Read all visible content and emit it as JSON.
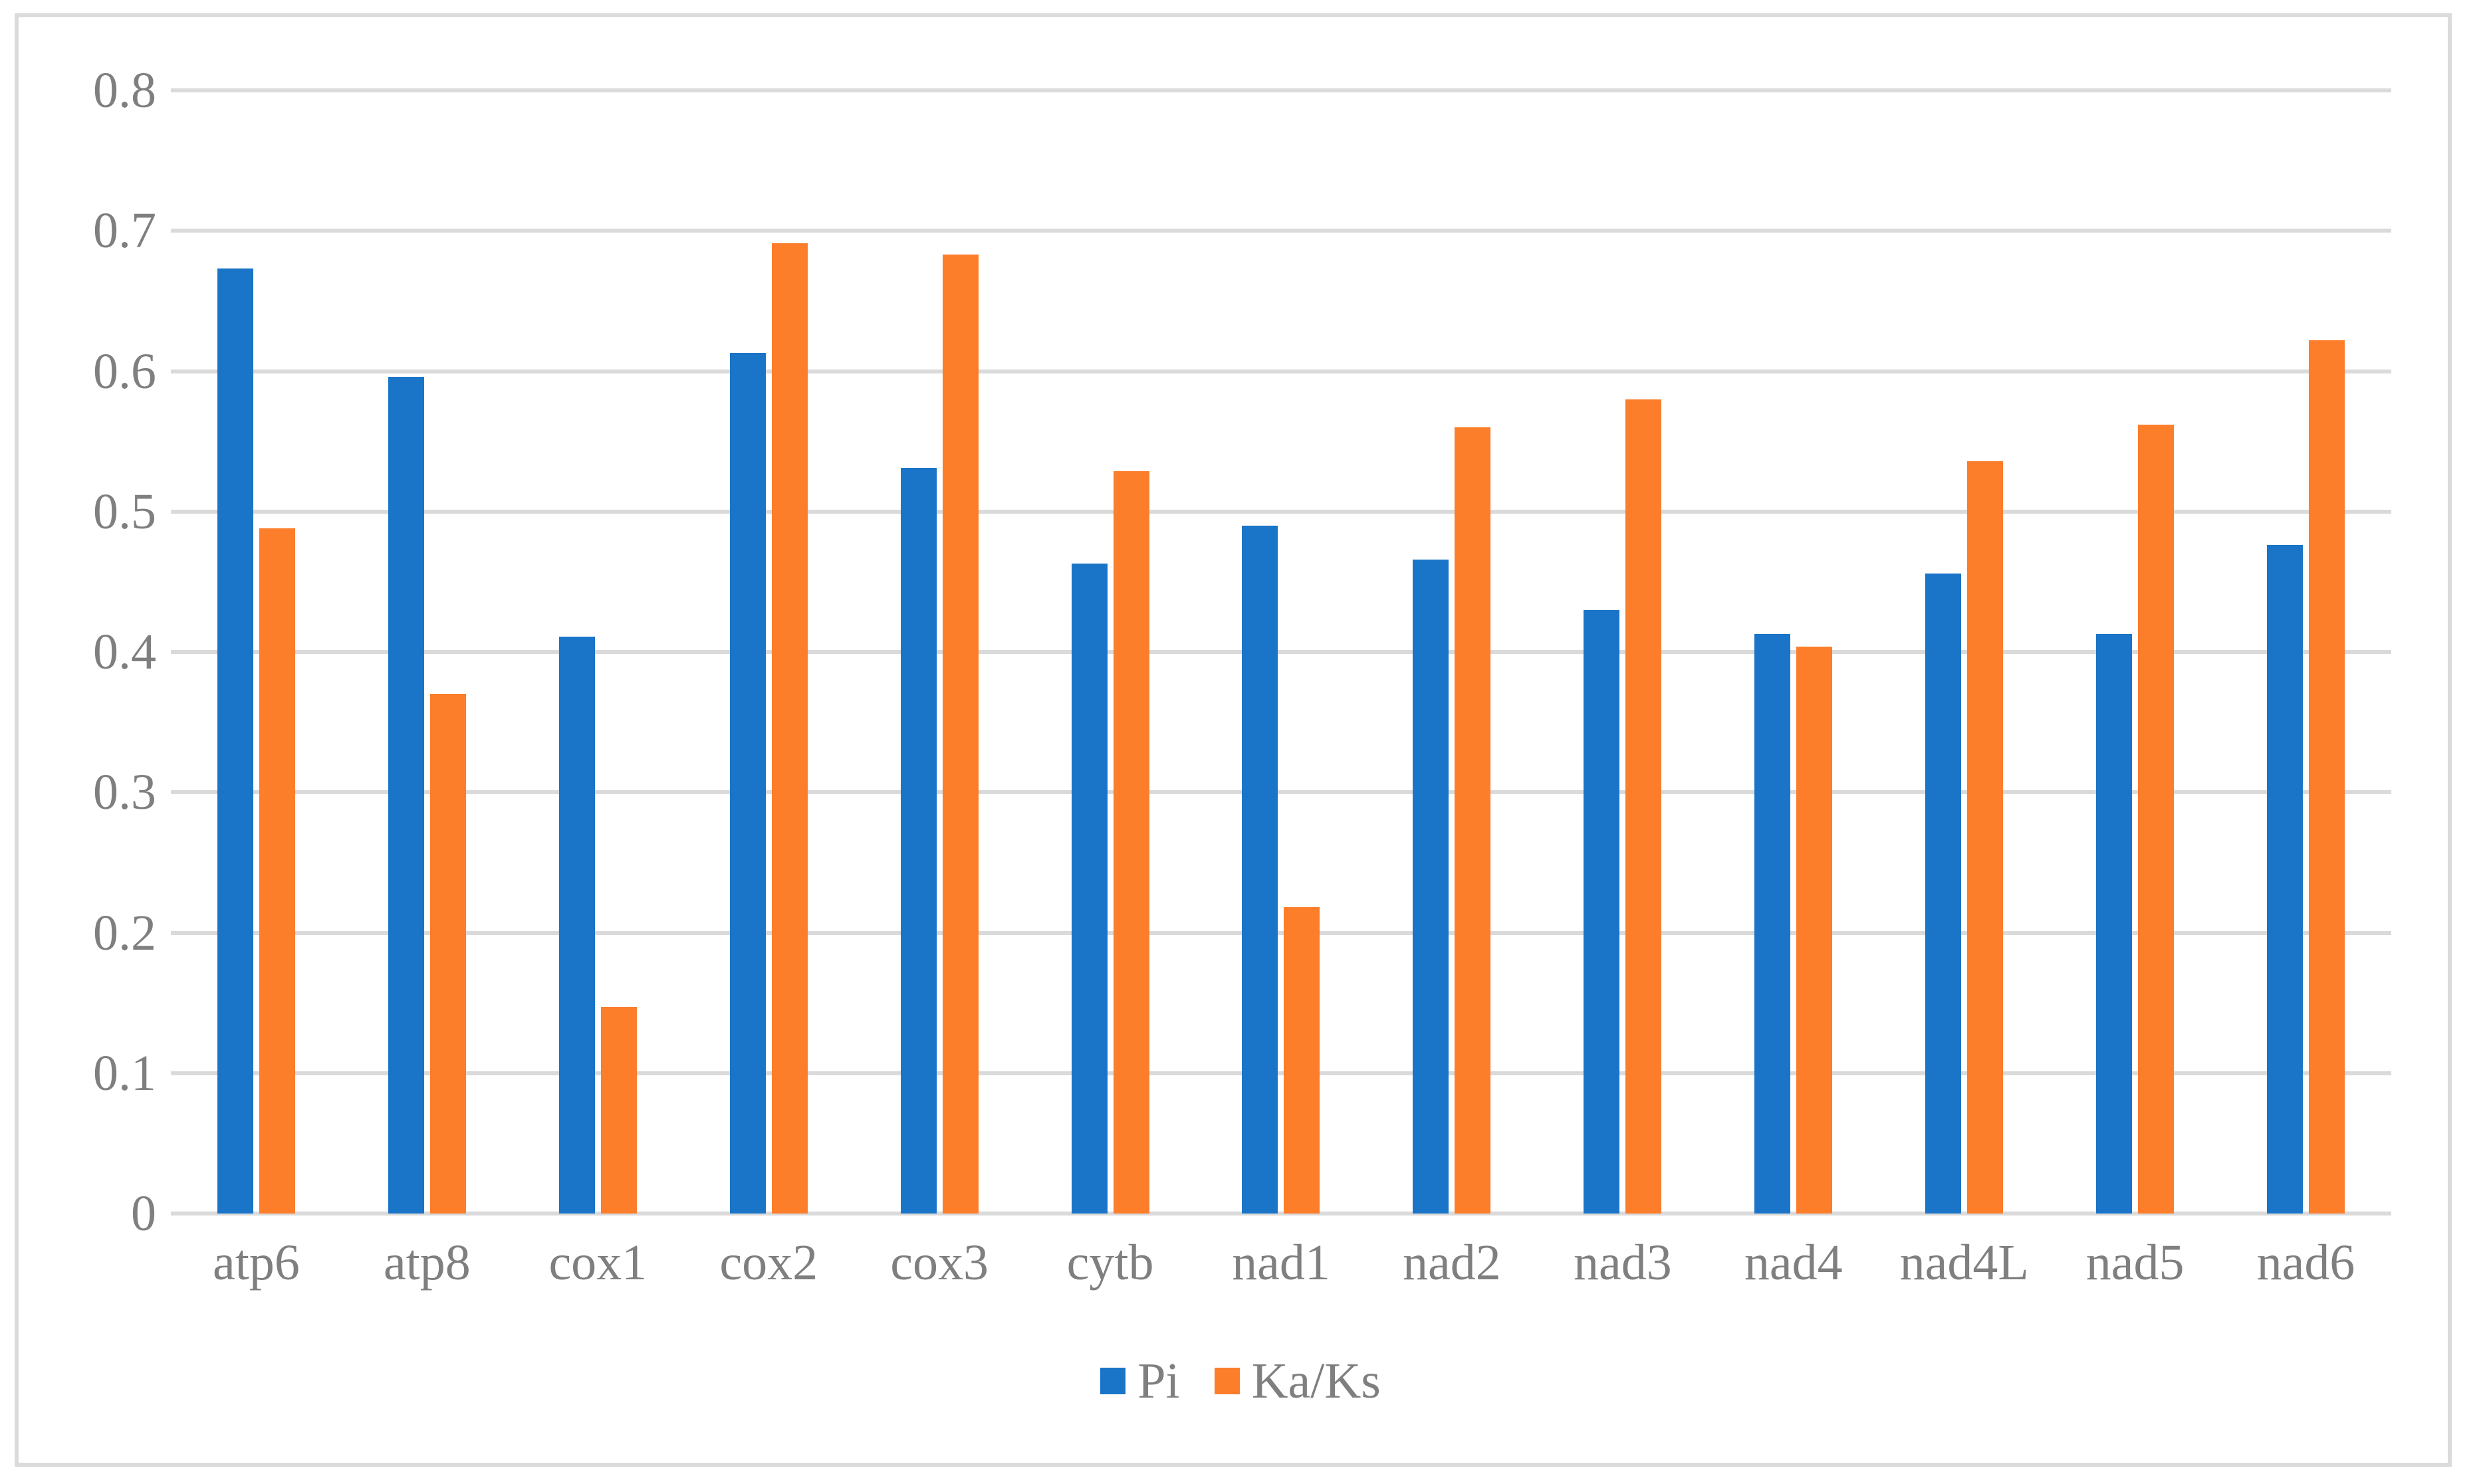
{
  "figure": {
    "background_color": "#FFFFFF",
    "border_color": "#DBDBDB",
    "gridline_color": "#DADADA",
    "text_color": "#7F7F7F"
  },
  "chart_data": {
    "type": "bar",
    "title": "",
    "xlabel": "",
    "ylabel": "",
    "categories": [
      "atp6",
      "atp8",
      "cox1",
      "cox2",
      "cox3",
      "cytb",
      "nad1",
      "nad2",
      "nad3",
      "nad4",
      "nad4L",
      "nad5",
      "nad6"
    ],
    "series": [
      {
        "name": "Pi",
        "color": "#1A74C8",
        "values": [
          0.673,
          0.596,
          0.411,
          0.613,
          0.531,
          0.463,
          0.49,
          0.466,
          0.43,
          0.413,
          0.456,
          0.413,
          0.476
        ]
      },
      {
        "name": "Ka/Ks",
        "color": "#FC7D2A",
        "values": [
          0.488,
          0.37,
          0.147,
          0.691,
          0.683,
          0.529,
          0.218,
          0.56,
          0.58,
          0.404,
          0.536,
          0.562,
          0.622
        ]
      }
    ],
    "ylim": [
      0,
      0.8
    ],
    "yticks": [
      "0",
      "0.1",
      "0.2",
      "0.3",
      "0.4",
      "0.5",
      "0.6",
      "0.7",
      "0.8"
    ],
    "grid": true,
    "legend_position": "bottom"
  },
  "legend": {
    "items": [
      {
        "label": "Pi",
        "color": "#1A74C8"
      },
      {
        "label": "Ka/Ks",
        "color": "#FC7D2A"
      }
    ]
  }
}
